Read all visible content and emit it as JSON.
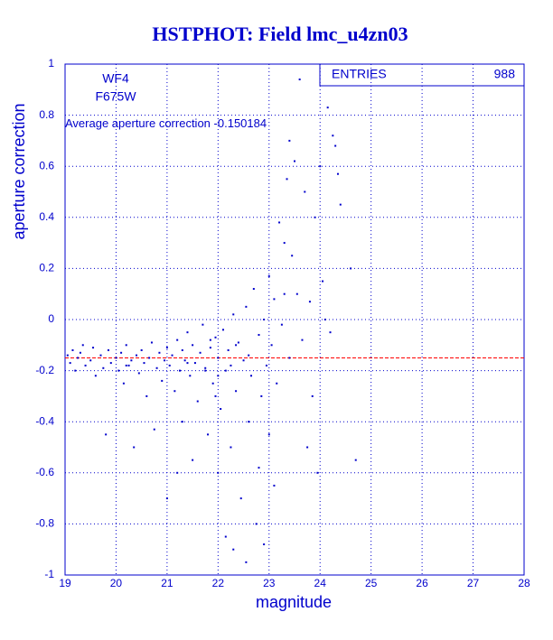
{
  "chart_data": {
    "type": "scatter",
    "title": "HSTPHOT: Field lmc_u4zn03",
    "x_label": "magnitude",
    "y_label": "aperture correction",
    "detector": "WF4",
    "filter": "F675W",
    "average_label": "Average aperture correction",
    "average": -0.150184,
    "stats_label": "ENTRIES",
    "stats_value": 988,
    "color": "#0000cc",
    "average_color": "#ff0000",
    "grid": true,
    "xlim": [
      19,
      28
    ],
    "ylim": [
      -1,
      1
    ],
    "xticks": [
      19,
      20,
      21,
      22,
      23,
      24,
      25,
      26,
      27,
      28
    ],
    "yticks": [
      -1,
      -0.8,
      -0.6,
      -0.4,
      -0.2,
      0,
      0.2,
      0.4,
      0.6,
      0.8,
      1
    ],
    "x": [
      19.05,
      19.1,
      19.15,
      19.2,
      19.25,
      19.3,
      19.4,
      19.5,
      19.55,
      19.6,
      19.7,
      19.75,
      19.8,
      19.85,
      19.9,
      20.0,
      20.05,
      20.1,
      20.15,
      20.2,
      20.25,
      20.3,
      20.35,
      20.4,
      20.45,
      20.5,
      20.55,
      20.6,
      20.65,
      20.7,
      20.75,
      20.8,
      20.85,
      20.9,
      20.95,
      21.0,
      21.0,
      21.05,
      21.1,
      21.15,
      21.2,
      21.25,
      21.3,
      21.3,
      21.35,
      21.4,
      21.45,
      21.5,
      21.5,
      21.55,
      21.6,
      21.65,
      21.7,
      21.75,
      21.8,
      21.85,
      21.9,
      21.95,
      22.0,
      22.0,
      22.05,
      22.1,
      22.15,
      22.2,
      22.25,
      22.3,
      22.3,
      22.35,
      22.4,
      22.45,
      22.5,
      22.55,
      22.6,
      22.65,
      22.7,
      22.75,
      22.8,
      22.85,
      22.9,
      22.9,
      22.95,
      23.0,
      23.0,
      23.05,
      23.1,
      23.15,
      23.2,
      23.25,
      23.3,
      23.35,
      23.4,
      23.45,
      23.5,
      23.55,
      23.6,
      23.65,
      23.7,
      23.75,
      23.8,
      23.85,
      23.9,
      23.95,
      24.0,
      24.05,
      24.1,
      24.15,
      24.2,
      24.25,
      24.3,
      24.35,
      24.4,
      24.6,
      24.7,
      21.2,
      20.2,
      19.35,
      22.15,
      22.55,
      21.75,
      22.35,
      22.6,
      21.4,
      21.85,
      22.0,
      23.1,
      22.8,
      23.4,
      23.3,
      21.95,
      22.25
    ],
    "values": [
      -0.14,
      -0.17,
      -0.12,
      -0.2,
      -0.15,
      -0.13,
      -0.18,
      -0.16,
      -0.11,
      -0.22,
      -0.14,
      -0.19,
      -0.45,
      -0.12,
      -0.17,
      -0.15,
      -0.2,
      -0.13,
      -0.25,
      -0.1,
      -0.18,
      -0.16,
      -0.5,
      -0.14,
      -0.21,
      -0.12,
      -0.17,
      -0.3,
      -0.15,
      -0.09,
      -0.43,
      -0.19,
      -0.13,
      -0.24,
      -0.16,
      -0.11,
      -0.7,
      -0.18,
      -0.14,
      -0.28,
      -0.08,
      -0.2,
      -0.12,
      -0.4,
      -0.16,
      -0.05,
      -0.22,
      -0.1,
      -0.55,
      -0.17,
      -0.32,
      -0.13,
      -0.02,
      -0.19,
      -0.45,
      -0.11,
      -0.25,
      -0.07,
      -0.15,
      -0.6,
      -0.35,
      -0.04,
      -0.2,
      -0.12,
      -0.5,
      0.02,
      -0.9,
      -0.28,
      -0.09,
      -0.7,
      -0.16,
      0.05,
      -0.4,
      -0.22,
      0.12,
      -0.8,
      -0.06,
      -0.3,
      0.0,
      -0.88,
      -0.18,
      0.17,
      -0.45,
      -0.1,
      0.08,
      -0.25,
      0.38,
      -0.02,
      0.3,
      0.55,
      -0.15,
      0.25,
      0.62,
      0.1,
      0.94,
      -0.08,
      0.5,
      -0.5,
      0.07,
      -0.3,
      0.4,
      -0.6,
      0.6,
      0.15,
      0.0,
      0.83,
      -0.05,
      0.72,
      0.68,
      0.57,
      0.45,
      0.2,
      -0.55,
      -0.6,
      -0.18,
      -0.1,
      -0.85,
      -0.95,
      -0.2,
      -0.1,
      -0.14,
      -0.17,
      -0.08,
      -0.22,
      -0.65,
      -0.58,
      0.7,
      0.1,
      -0.3,
      -0.18
    ]
  }
}
